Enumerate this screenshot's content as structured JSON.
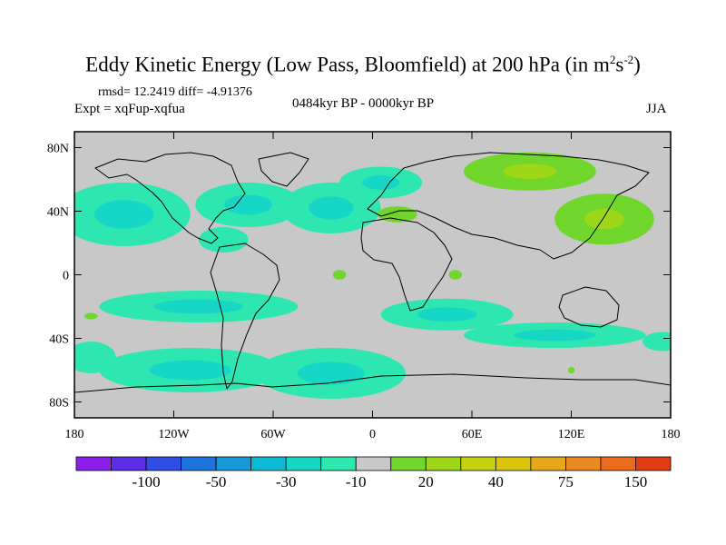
{
  "title": {
    "main": "Eddy Kinetic Energy (Low Pass, Bloomfield) at 200 hPa (in m",
    "sup1": "2",
    "mid": "s",
    "sup2": "-2",
    "end": ")"
  },
  "stats": "rmsd= 12.2419 diff= -4.91376",
  "expt": "Expt = xqFup-xqfua",
  "period": "0484kyr BP - 0000kyr BP",
  "season": "JJA",
  "axes": {
    "lat_ticks": [
      "80N",
      "40N",
      "0",
      "40S",
      "80S"
    ],
    "lon_ticks": [
      "180",
      "120W",
      "60W",
      "0",
      "60E",
      "120E",
      "180"
    ]
  },
  "colorbar": {
    "colors": [
      "#8b1ee8",
      "#5d2ee6",
      "#2e4ee6",
      "#1e72dc",
      "#149ad8",
      "#0cbad6",
      "#16d6c6",
      "#2ee6b0",
      "#c8c8c8",
      "#70d62c",
      "#9ed61a",
      "#c6d210",
      "#dac40c",
      "#e6a81a",
      "#ec8a22",
      "#ea6a1e",
      "#e23c12"
    ],
    "labels": [
      "-100",
      "-50",
      "-30",
      "-10",
      "20",
      "40",
      "75",
      "150"
    ]
  },
  "chart_data": {
    "type": "heatmap",
    "title": "Eddy Kinetic Energy (Low Pass, Bloomfield) at 200 hPa (in m2s-2)",
    "experiment": "xqFup-xqfua",
    "period": "0484kyr BP - 0000kyr BP",
    "season": "JJA",
    "rmsd": 12.2419,
    "diff": -4.91376,
    "xlim": [
      -180,
      180
    ],
    "ylim": [
      -90,
      90
    ],
    "features": [
      {
        "kind": "negative",
        "lon": -150,
        "lat": 38,
        "rx": 40,
        "ry": 20
      },
      {
        "kind": "negative",
        "lon": -75,
        "lat": 44,
        "rx": 32,
        "ry": 14
      },
      {
        "kind": "negative",
        "lon": -25,
        "lat": 42,
        "rx": 30,
        "ry": 16
      },
      {
        "kind": "negative",
        "lon": 5,
        "lat": 58,
        "rx": 25,
        "ry": 10
      },
      {
        "kind": "negative",
        "lon": -90,
        "lat": 22,
        "rx": 15,
        "ry": 8
      },
      {
        "kind": "negative",
        "lon": -105,
        "lat": -20,
        "rx": 60,
        "ry": 10
      },
      {
        "kind": "negative",
        "lon": 45,
        "lat": -25,
        "rx": 40,
        "ry": 10
      },
      {
        "kind": "negative",
        "lon": -170,
        "lat": -52,
        "rx": 15,
        "ry": 10
      },
      {
        "kind": "negative",
        "lon": -110,
        "lat": -60,
        "rx": 55,
        "ry": 14
      },
      {
        "kind": "negative",
        "lon": -25,
        "lat": -62,
        "rx": 45,
        "ry": 16
      },
      {
        "kind": "negative",
        "lon": 110,
        "lat": -38,
        "rx": 55,
        "ry": 8
      },
      {
        "kind": "negative",
        "lon": 175,
        "lat": -42,
        "rx": 12,
        "ry": 6
      },
      {
        "kind": "positive",
        "lon": 95,
        "lat": 65,
        "rx": 40,
        "ry": 12
      },
      {
        "kind": "positive",
        "lon": 140,
        "lat": 35,
        "rx": 30,
        "ry": 16
      },
      {
        "kind": "positive",
        "lon": 15,
        "lat": 38,
        "rx": 12,
        "ry": 5
      },
      {
        "kind": "positive",
        "lon": -20,
        "lat": 0,
        "rx": 4,
        "ry": 3
      },
      {
        "kind": "positive",
        "lon": 50,
        "lat": 0,
        "rx": 4,
        "ry": 3
      },
      {
        "kind": "positive",
        "lon": -170,
        "lat": -26,
        "rx": 4,
        "ry": 2
      },
      {
        "kind": "positive",
        "lon": 120,
        "lat": -60,
        "rx": 2,
        "ry": 2
      }
    ]
  }
}
